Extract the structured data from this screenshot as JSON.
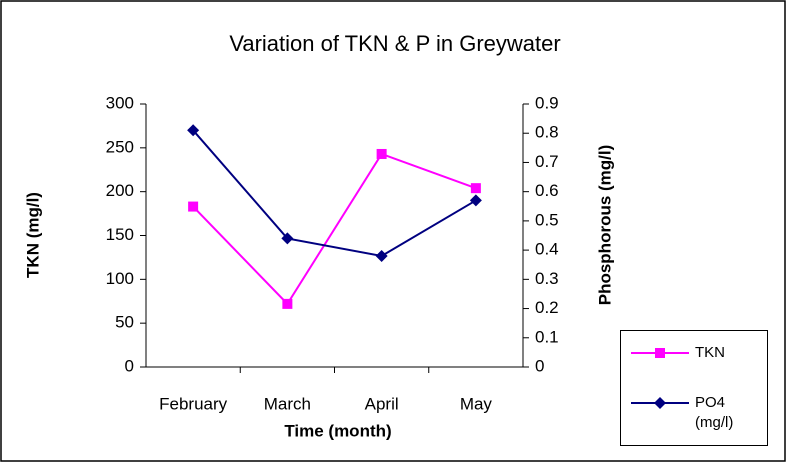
{
  "chart_data": {
    "type": "line",
    "title": "Variation of TKN & P in Greywater",
    "x_label": "Time (month)",
    "y_label": "TKN (mg/l)",
    "y2_label": "Phosphorous (mg/l)",
    "categories": [
      "February",
      "March",
      "April",
      "May"
    ],
    "series": [
      {
        "name": "TKN",
        "color": "#ff00ff",
        "marker": "square",
        "values": [
          183,
          72,
          243,
          204
        ]
      },
      {
        "name": "PO4 (mg/l)",
        "color": "#000080",
        "marker": "diamond",
        "axis": "y2",
        "values": [
          0.81,
          0.44,
          0.38,
          0.57
        ]
      }
    ],
    "ylim": [
      0,
      300
    ],
    "yticks": [
      0,
      50,
      100,
      150,
      200,
      250,
      300
    ],
    "y2lim": [
      0,
      0.9
    ],
    "y2ticks": [
      0,
      0.1,
      0.2,
      0.3,
      0.4,
      0.5,
      0.6,
      0.7,
      0.8,
      0.9
    ],
    "grid": false,
    "legend": "lower right"
  }
}
